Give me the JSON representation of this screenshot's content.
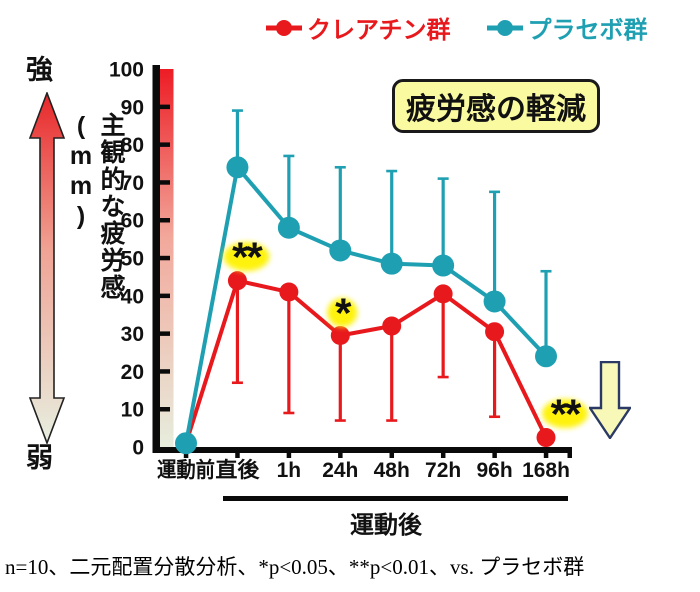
{
  "legend": {
    "items": [
      {
        "label": "クレアチン群",
        "color": "#E8191D"
      },
      {
        "label": "プラセボ群",
        "color": "#1FA0B2"
      }
    ]
  },
  "y_axis": {
    "strong_label": "強",
    "weak_label": "弱",
    "axis_title": "主観的な疲労感(mm)",
    "min": 0,
    "max": 100,
    "tick_step": 10
  },
  "title_box": {
    "text": "疲労感の軽減",
    "bg_color": "#FAFAA0"
  },
  "x_axis": {
    "group_label": "運動後"
  },
  "caption": "n=10、二元配置分散分析、*p<0.05、**p<0.01、vs. プラセボ群",
  "icons": {
    "left_gradient_arrow": "fatigue-intensity-scale-arrow",
    "right_down_arrow": "fatigue-decrease-arrow"
  },
  "colors": {
    "creatine_red": "#E8191D",
    "placebo_teal": "#1FA0B2",
    "highlight_yellow": "#FFF200",
    "arrow_fill": "#F8F8B8",
    "arrow_border": "#2B3A64"
  },
  "chart_data": {
    "type": "line",
    "title": "疲労感の軽減",
    "ylabel": "主観的な疲労感(mm)",
    "xlabel": "",
    "ylim": [
      0,
      100
    ],
    "grid": false,
    "legend_position": "top",
    "categories": [
      "運動前",
      "直後",
      "1h",
      "24h",
      "48h",
      "72h",
      "96h",
      "168h"
    ],
    "series": [
      {
        "name": "クレアチン群",
        "color": "#E8191D",
        "values": [
          1,
          44,
          41,
          29.5,
          32,
          40.5,
          30.5,
          2.5
        ],
        "error_down": [
          0,
          27,
          32,
          22.5,
          25,
          22,
          22.5,
          0
        ]
      },
      {
        "name": "プラセボ群",
        "color": "#1FA0B2",
        "values": [
          1,
          74,
          58,
          52,
          48.5,
          48,
          38.5,
          24
        ],
        "error_up": [
          0,
          15,
          19,
          22,
          24.5,
          23,
          29,
          22.5
        ]
      }
    ],
    "annotations": [
      {
        "category": "直後",
        "series": "クレアチン群",
        "text": "**"
      },
      {
        "category": "24h",
        "series": "クレアチン群",
        "text": "*"
      },
      {
        "category": "168h",
        "series": "クレアチン群",
        "text": "**"
      }
    ]
  }
}
